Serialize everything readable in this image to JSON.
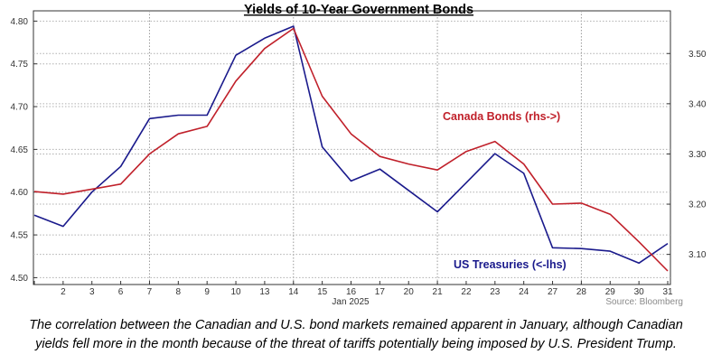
{
  "chart_data": {
    "type": "line",
    "title": "Yields of 10-Year Government Bonds",
    "xlabel": "Jan 2025",
    "x": [
      "1",
      "2",
      "3",
      "6",
      "7",
      "8",
      "9",
      "10",
      "13",
      "14",
      "15",
      "16",
      "17",
      "20",
      "21",
      "22",
      "23",
      "24",
      "27",
      "28",
      "29",
      "30",
      "31"
    ],
    "x_tick_labels": [
      "2",
      "3",
      "6",
      "7",
      "8",
      "9",
      "10",
      "13",
      "14",
      "15",
      "16",
      "17",
      "20",
      "21",
      "22",
      "23",
      "24",
      "27",
      "28",
      "29",
      "30",
      "31"
    ],
    "series": [
      {
        "name": "US Treasuries (<-lhs)",
        "axis": "left",
        "color": "#1a1a8c",
        "values": [
          4.573,
          4.56,
          4.6,
          4.63,
          4.686,
          4.69,
          4.69,
          4.76,
          4.78,
          4.794,
          4.653,
          4.613,
          4.627,
          4.602,
          4.577,
          4.611,
          4.645,
          4.622,
          4.535,
          4.534,
          4.531,
          4.517,
          4.54
        ]
      },
      {
        "name": "Canada Bonds (rhs->)",
        "axis": "right",
        "color": "#c0202a",
        "values": [
          3.225,
          3.22,
          3.23,
          3.24,
          3.3,
          3.34,
          3.355,
          3.445,
          3.51,
          3.55,
          3.415,
          3.34,
          3.295,
          3.28,
          3.268,
          3.305,
          3.325,
          3.28,
          3.2,
          3.202,
          3.18,
          3.125,
          3.067
        ]
      }
    ],
    "y_left": {
      "ylim": [
        4.492,
        4.812
      ],
      "ticks": [
        "4.50",
        "4.55",
        "4.60",
        "4.65",
        "4.70",
        "4.75",
        "4.80"
      ]
    },
    "y_right": {
      "ylim": [
        3.04,
        3.585
      ],
      "ticks": [
        "3.10",
        "3.20",
        "3.30",
        "3.40",
        "3.50"
      ]
    },
    "grid": true,
    "source": "Source: Bloomberg",
    "annotations": {
      "canada": "Canada Bonds (rhs->)",
      "us": "US Treasuries (<-lhs)"
    }
  },
  "caption": {
    "line1": "The correlation between the Canadian and U.S. bond markets remained apparent in January, although Canadian",
    "line2": "yields fell more in the month because of the threat of tariffs potentially being imposed by U.S. President Trump."
  }
}
